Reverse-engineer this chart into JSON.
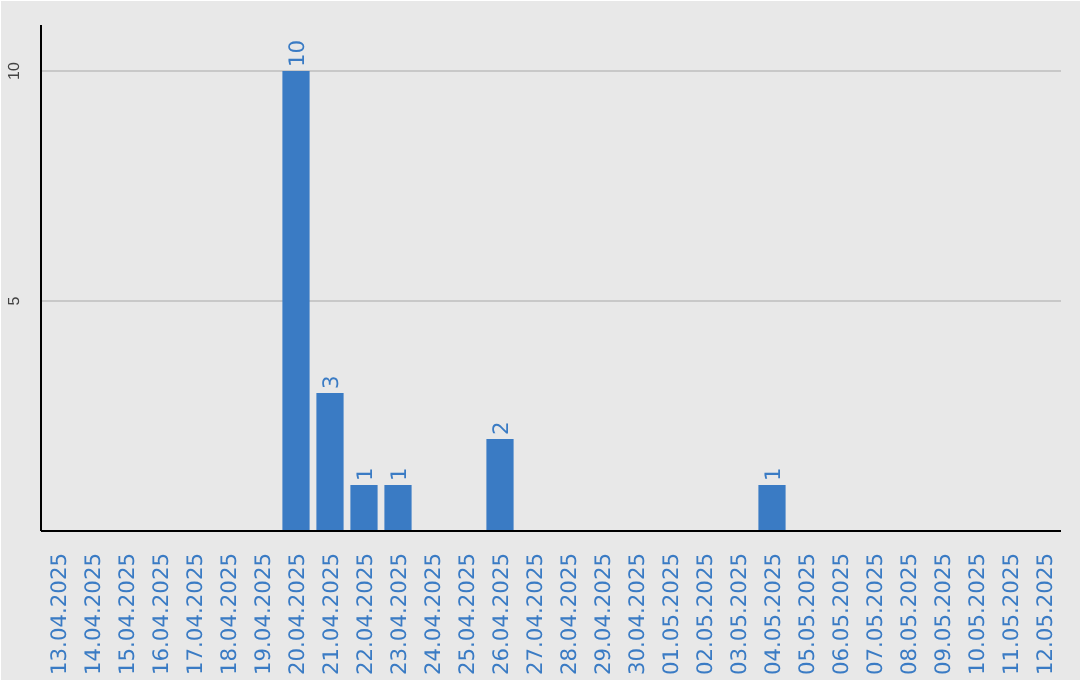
{
  "chart_data": {
    "type": "bar",
    "categories": [
      "13.04.2025",
      "14.04.2025",
      "15.04.2025",
      "16.04.2025",
      "17.04.2025",
      "18.04.2025",
      "19.04.2025",
      "20.04.2025",
      "21.04.2025",
      "22.04.2025",
      "23.04.2025",
      "24.04.2025",
      "25.04.2025",
      "26.04.2025",
      "27.04.2025",
      "28.04.2025",
      "29.04.2025",
      "30.04.2025",
      "01.05.2025",
      "02.05.2025",
      "03.05.2025",
      "04.05.2025",
      "05.05.2025",
      "06.05.2025",
      "07.05.2025",
      "08.05.2025",
      "09.05.2025",
      "10.05.2025",
      "11.05.2025",
      "12.05.2025"
    ],
    "values": [
      0,
      0,
      0,
      0,
      0,
      0,
      0,
      10,
      3,
      1,
      1,
      0,
      0,
      2,
      0,
      0,
      0,
      0,
      0,
      0,
      0,
      1,
      0,
      0,
      0,
      0,
      0,
      0,
      0,
      0
    ],
    "value_labels": [
      null,
      null,
      null,
      null,
      null,
      null,
      null,
      "10",
      "3",
      "1",
      "1",
      null,
      null,
      "2",
      null,
      null,
      null,
      null,
      null,
      null,
      null,
      "1",
      null,
      null,
      null,
      null,
      null,
      null,
      null,
      null
    ],
    "color": "#3a7bc4",
    "ylim": [
      0,
      11
    ],
    "yticks": [
      5,
      10
    ],
    "grid": "y"
  }
}
